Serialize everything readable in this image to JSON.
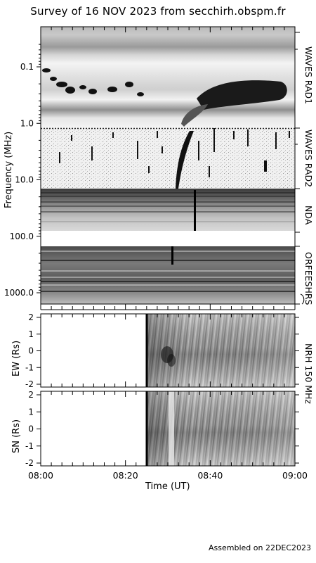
{
  "title": "Survey of 16 NOV 2023 from secchirh.obspm.fr",
  "footer": "Assembled on 22DEC2023",
  "chart_data": [
    {
      "type": "heatmap",
      "panels": [
        "WAVES RAD1",
        "WAVES RAD2",
        "NDA",
        "ORFEES",
        "NRH"
      ],
      "ylabel": "Frequency (MHz)",
      "yscale": "log",
      "y_ticks": [
        "0.1",
        "1.0",
        "10.0",
        "100.0",
        "1000.0"
      ],
      "y_tick_values": [
        0.1,
        1.0,
        10.0,
        100.0,
        1000.0
      ],
      "right_labels": [
        "WAVES RAD1",
        "WAVES RAD2",
        "NDA",
        "ORFEESHRS"
      ],
      "x_ticks": [
        "08:00",
        "08:20",
        "08:40",
        "09:00"
      ]
    },
    {
      "type": "heatmap",
      "ylabel": "EW (Rs)",
      "y_ticks": [
        "2",
        "1",
        "0",
        "-1",
        "-2"
      ],
      "ylim": [
        -2,
        2
      ],
      "right_label": "NRH 150 MHz",
      "data_start": "08:25"
    },
    {
      "type": "heatmap",
      "ylabel": "SN (Rs)",
      "y_ticks": [
        "2",
        "1",
        "0",
        "-1",
        "-2"
      ],
      "ylim": [
        -2,
        2
      ],
      "data_start": "08:25",
      "xlabel": "Time (UT)",
      "x_ticks": [
        "08:00",
        "08:20",
        "08:40",
        "09:00"
      ]
    }
  ]
}
